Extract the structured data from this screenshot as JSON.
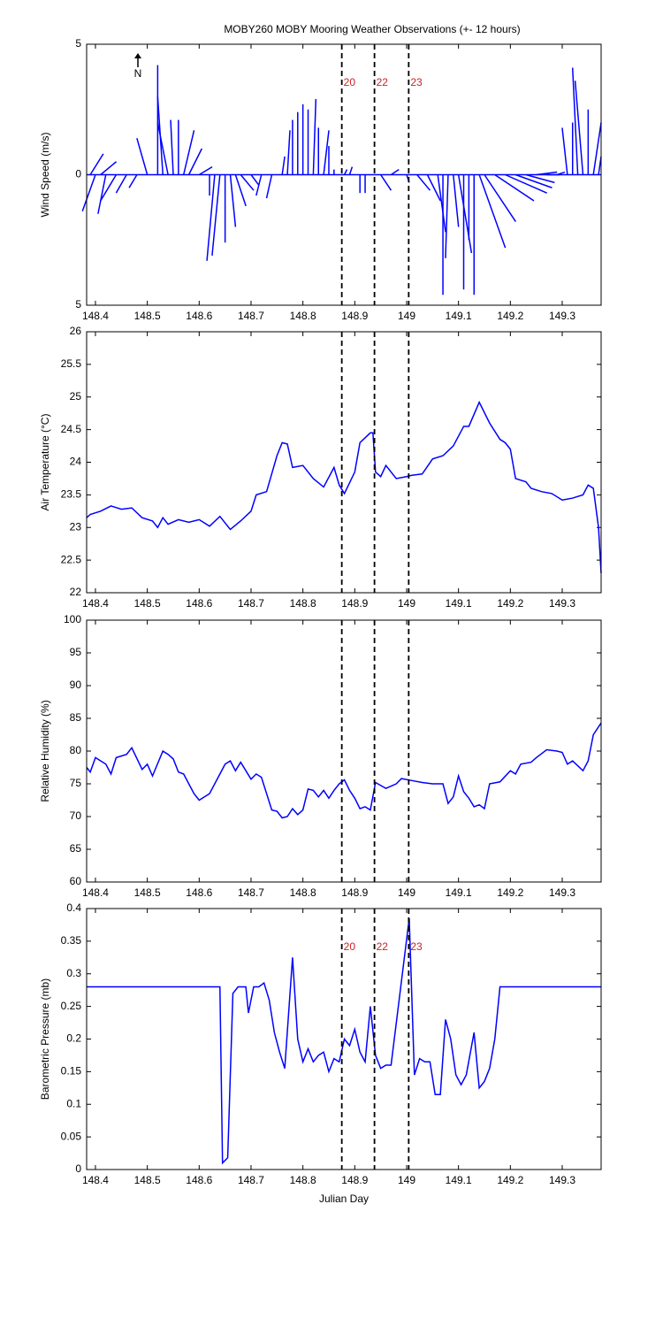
{
  "chart_data": [
    {
      "type": "stick",
      "title": "MOBY260 MOBY Mooring Weather Observations (+- 12 hours)",
      "ylabel": "Wind Speed (m/s)",
      "north_label": "N",
      "color": "#0000ff",
      "xlim": [
        148.383,
        149.375
      ],
      "xticks": [
        148.4,
        148.5,
        148.6,
        148.7,
        148.8,
        148.9,
        149,
        149.1,
        149.2,
        149.3
      ],
      "ylim": [
        -5,
        5
      ],
      "yticks": [
        {
          "value": -5,
          "label": "5"
        },
        0,
        5
      ],
      "vlines": [
        148.875,
        148.938,
        149.004
      ],
      "vline_labels": [
        "20",
        "22",
        "23"
      ],
      "x": [
        148.39,
        148.4,
        148.41,
        148.42,
        148.44,
        148.46,
        148.48,
        148.5,
        148.52,
        148.53,
        148.54,
        148.55,
        148.56,
        148.57,
        148.58,
        148.6,
        148.62,
        148.63,
        148.64,
        148.65,
        148.66,
        148.67,
        148.68,
        148.7,
        148.72,
        148.74,
        148.76,
        148.77,
        148.78,
        148.79,
        148.8,
        148.81,
        148.82,
        148.83,
        148.84,
        148.85,
        148.86,
        148.88,
        148.89,
        148.91,
        148.92,
        148.95,
        148.97,
        149.0,
        149.02,
        149.04,
        149.06,
        149.07,
        149.08,
        149.09,
        149.1,
        149.11,
        149.12,
        149.13,
        149.14,
        149.15,
        149.17,
        149.19,
        149.21,
        149.23,
        149.25,
        149.27,
        149.29,
        149.31,
        149.32,
        149.33,
        149.34,
        149.35,
        149.36,
        149.37
      ],
      "u": [
        0.5,
        -0.5,
        0.6,
        -0.3,
        -0.6,
        -0.4,
        -0.3,
        -0.4,
        0,
        -0.2,
        -0.4,
        -0.1,
        0,
        0.4,
        0.5,
        0.5,
        0,
        -0.3,
        -0.3,
        0,
        0.2,
        0.4,
        0.5,
        0.3,
        -0.2,
        -0.2,
        0.1,
        0.1,
        0,
        0,
        0,
        0,
        0.1,
        0,
        0.2,
        0,
        0,
        0.1,
        0.1,
        0,
        0,
        0.4,
        0.3,
        0.1,
        0.5,
        0.5,
        0.3,
        0,
        -0.1,
        0.2,
        0.5,
        0,
        0,
        0,
        1.0,
        1.2,
        1.5,
        1.6,
        1.4,
        1.1,
        0.8,
        0.5,
        0.3,
        -0.2,
        0,
        -0.2,
        -0.3,
        0,
        0.3,
        0.1
      ],
      "v": [
        0.8,
        -1.4,
        0.5,
        -1.5,
        -1.0,
        -0.7,
        -0.5,
        1.4,
        4.2,
        3.0,
        2.0,
        2.1,
        2.1,
        1.7,
        1.0,
        0.3,
        -0.8,
        -3.3,
        -3.1,
        -2.6,
        -2.0,
        -1.2,
        -0.6,
        -0.4,
        -0.8,
        -0.9,
        0.7,
        1.7,
        2.1,
        2.4,
        2.7,
        2.5,
        2.9,
        1.8,
        1.7,
        1.1,
        0.2,
        0.2,
        0.3,
        -0.7,
        -0.7,
        -0.6,
        0.2,
        -0.3,
        -0.6,
        -1.0,
        -2.2,
        -4.6,
        -3.2,
        -2.0,
        -3.0,
        -4.4,
        -2.5,
        -4.6,
        -2.8,
        -1.8,
        -1.0,
        -0.7,
        -0.5,
        -0.3,
        0.1,
        0,
        0.1,
        1.8,
        2.0,
        4.1,
        3.6,
        2.5,
        2.0,
        0.7
      ]
    },
    {
      "type": "line",
      "ylabel": "Air Temperature (°C)",
      "color": "#0000ff",
      "xlim": [
        148.383,
        149.375
      ],
      "xticks": [
        148.4,
        148.5,
        148.6,
        148.7,
        148.8,
        148.9,
        149,
        149.1,
        149.2,
        149.3
      ],
      "ylim": [
        22,
        26
      ],
      "yticks": [
        22,
        22.5,
        23,
        23.5,
        24,
        24.5,
        25,
        25.5,
        26
      ],
      "vlines": [
        148.875,
        148.938,
        149.004
      ],
      "x": [
        148.383,
        148.39,
        148.41,
        148.43,
        148.45,
        148.47,
        148.49,
        148.51,
        148.52,
        148.53,
        148.54,
        148.56,
        148.58,
        148.6,
        148.62,
        148.64,
        148.66,
        148.68,
        148.7,
        148.71,
        148.73,
        148.75,
        148.76,
        148.77,
        148.78,
        148.8,
        148.82,
        148.84,
        148.86,
        148.87,
        148.88,
        148.9,
        148.91,
        148.93,
        148.935,
        148.94,
        148.95,
        148.96,
        148.98,
        149.0,
        149.01,
        149.03,
        149.05,
        149.07,
        149.09,
        149.11,
        149.12,
        149.14,
        149.16,
        149.18,
        149.19,
        149.2,
        149.21,
        149.23,
        149.24,
        149.26,
        149.28,
        149.3,
        149.32,
        149.34,
        149.35,
        149.36,
        149.37,
        149.375
      ],
      "values": [
        23.15,
        23.2,
        23.25,
        23.33,
        23.28,
        23.3,
        23.15,
        23.1,
        23.0,
        23.15,
        23.05,
        23.12,
        23.08,
        23.12,
        23.02,
        23.17,
        22.97,
        23.1,
        23.25,
        23.5,
        23.55,
        24.1,
        24.3,
        24.28,
        23.92,
        23.95,
        23.75,
        23.62,
        23.92,
        23.65,
        23.52,
        23.85,
        24.3,
        24.45,
        24.45,
        23.85,
        23.78,
        23.95,
        23.75,
        23.78,
        23.8,
        23.82,
        24.05,
        24.1,
        24.25,
        24.55,
        24.55,
        24.92,
        24.6,
        24.35,
        24.3,
        24.2,
        23.75,
        23.7,
        23.6,
        23.55,
        23.52,
        23.42,
        23.45,
        23.5,
        23.65,
        23.6,
        23.0,
        22.3
      ]
    },
    {
      "type": "line",
      "ylabel": "Relative Humidity (%)",
      "color": "#0000ff",
      "xlim": [
        148.383,
        149.375
      ],
      "xticks": [
        148.4,
        148.5,
        148.6,
        148.7,
        148.8,
        148.9,
        149,
        149.1,
        149.2,
        149.3
      ],
      "ylim": [
        60,
        100
      ],
      "yticks": [
        60,
        65,
        70,
        75,
        80,
        85,
        90,
        95,
        100
      ],
      "vlines": [
        148.875,
        148.938,
        149.004
      ],
      "x": [
        148.383,
        148.39,
        148.4,
        148.42,
        148.43,
        148.44,
        148.46,
        148.47,
        148.49,
        148.5,
        148.51,
        148.53,
        148.54,
        148.55,
        148.56,
        148.57,
        148.59,
        148.6,
        148.62,
        148.64,
        148.65,
        148.66,
        148.67,
        148.68,
        148.7,
        148.71,
        148.72,
        148.74,
        148.75,
        148.76,
        148.77,
        148.78,
        148.79,
        148.8,
        148.81,
        148.82,
        148.83,
        148.84,
        148.85,
        148.86,
        148.87,
        148.88,
        148.89,
        148.9,
        148.91,
        148.92,
        148.93,
        148.94,
        148.96,
        148.98,
        148.99,
        149.01,
        149.03,
        149.05,
        149.07,
        149.08,
        149.09,
        149.1,
        149.11,
        149.12,
        149.13,
        149.14,
        149.15,
        149.16,
        149.18,
        149.2,
        149.21,
        149.22,
        149.24,
        149.25,
        149.27,
        149.29,
        149.3,
        149.31,
        149.32,
        149.34,
        149.35,
        149.36,
        149.375
      ],
      "values": [
        77.5,
        76.8,
        79,
        78,
        76.5,
        79,
        79.5,
        80.5,
        77.2,
        78,
        76.2,
        80,
        79.5,
        78.8,
        76.8,
        76.5,
        73.5,
        72.5,
        73.5,
        76.5,
        78,
        78.5,
        77,
        78.3,
        75.7,
        76.5,
        76,
        71,
        70.8,
        69.8,
        70,
        71.2,
        70.3,
        71,
        74.2,
        74,
        73,
        74,
        72.8,
        74,
        75,
        75.6,
        74,
        72.8,
        71.2,
        71.5,
        71,
        75.2,
        74.3,
        75,
        75.8,
        75.5,
        75.2,
        75,
        75,
        72,
        73,
        76.2,
        73.8,
        72.8,
        71.5,
        71.8,
        71.2,
        75,
        75.3,
        77,
        76.5,
        78,
        78.3,
        79,
        80.2,
        80,
        79.8,
        78,
        78.5,
        77,
        78.5,
        82.5,
        84.3
      ]
    },
    {
      "type": "line",
      "ylabel": "Barometric Pressure (mb)",
      "xlabel": "Julian Day",
      "color": "#0000ff",
      "xlim": [
        148.383,
        149.375
      ],
      "xticks": [
        148.4,
        148.5,
        148.6,
        148.7,
        148.8,
        148.9,
        149,
        149.1,
        149.2,
        149.3
      ],
      "ylim": [
        0,
        0.4
      ],
      "yticks": [
        0,
        0.05,
        0.1,
        0.15,
        0.2,
        0.25,
        0.3,
        0.35,
        0.4
      ],
      "vlines": [
        148.875,
        148.938,
        149.004
      ],
      "vline_labels": [
        "20",
        "22",
        "23"
      ],
      "x": [
        148.383,
        148.64,
        148.645,
        148.655,
        148.665,
        148.675,
        148.69,
        148.695,
        148.705,
        148.715,
        148.725,
        148.735,
        148.745,
        148.755,
        148.765,
        148.78,
        148.79,
        148.8,
        148.81,
        148.82,
        148.83,
        148.84,
        148.85,
        148.86,
        148.87,
        148.88,
        148.89,
        148.9,
        148.91,
        148.92,
        148.93,
        148.94,
        148.95,
        148.96,
        148.97,
        149.005,
        149.015,
        149.025,
        149.035,
        149.045,
        149.055,
        149.065,
        149.075,
        149.085,
        149.095,
        149.105,
        149.115,
        149.13,
        149.14,
        149.15,
        149.16,
        149.17,
        149.18,
        149.375
      ],
      "values": [
        0.28,
        0.28,
        0.01,
        0.018,
        0.27,
        0.28,
        0.28,
        0.24,
        0.28,
        0.28,
        0.286,
        0.26,
        0.21,
        0.18,
        0.155,
        0.325,
        0.2,
        0.165,
        0.185,
        0.165,
        0.175,
        0.18,
        0.15,
        0.17,
        0.165,
        0.2,
        0.19,
        0.215,
        0.18,
        0.165,
        0.25,
        0.175,
        0.155,
        0.16,
        0.16,
        0.385,
        0.145,
        0.17,
        0.165,
        0.165,
        0.115,
        0.115,
        0.23,
        0.2,
        0.145,
        0.13,
        0.145,
        0.21,
        0.125,
        0.135,
        0.155,
        0.2,
        0.28,
        0.28
      ]
    }
  ]
}
